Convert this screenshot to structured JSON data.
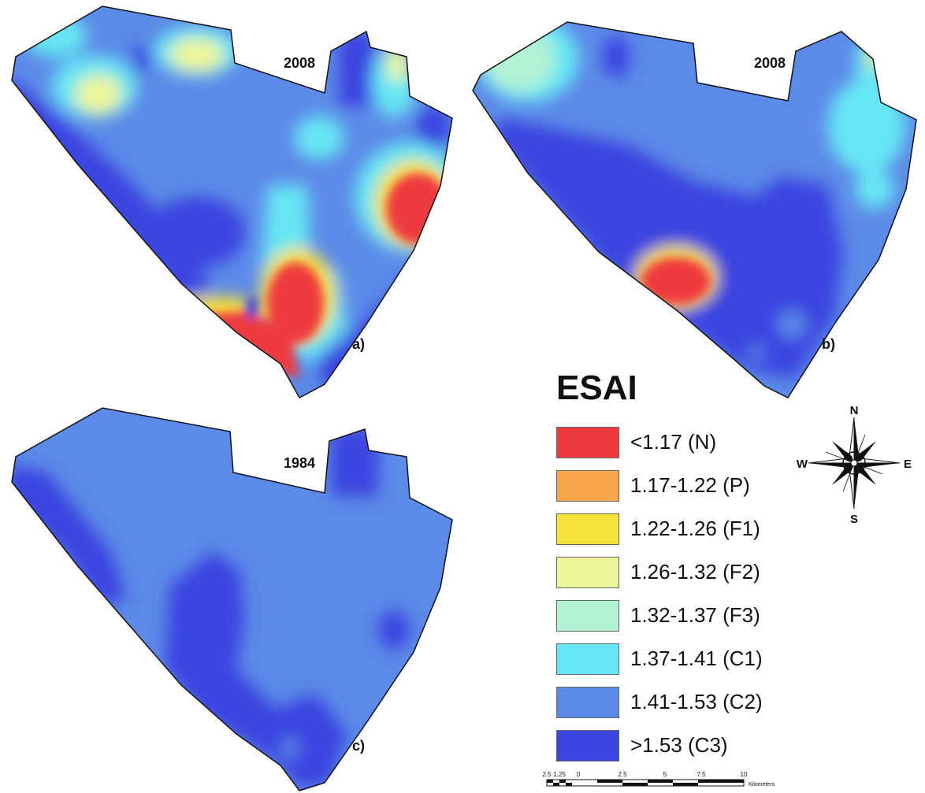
{
  "panels": [
    {
      "year": "2008",
      "letter": "a)"
    },
    {
      "year": "2008",
      "letter": "b)"
    },
    {
      "year": "1984",
      "letter": "c)"
    }
  ],
  "legend": {
    "title": "ESAI",
    "items": [
      {
        "label": "<1.17 (N)",
        "color": "#ef3b3f"
      },
      {
        "label": "1.17-1.22 (P)",
        "color": "#f7a54a"
      },
      {
        "label": "1.22-1.26 (F1)",
        "color": "#f7e23a"
      },
      {
        "label": "1.26-1.32 (F2)",
        "color": "#edf59a"
      },
      {
        "label": "1.32-1.37 (F3)",
        "color": "#b4f2d4"
      },
      {
        "label": "1.37-1.41 (C1)",
        "color": "#66e6f4"
      },
      {
        "label": "1.41-1.53 (C2)",
        "color": "#5c8ae8"
      },
      {
        "label": ">1.53 (C3)",
        "color": "#3b45e0"
      }
    ]
  },
  "compass": {
    "n": "N",
    "s": "S",
    "e": "E",
    "w": "W"
  },
  "scale_bar": {
    "ticks": [
      "2.5",
      "1.25",
      "0",
      "2.5",
      "5",
      "7.5",
      "10"
    ],
    "unit": "Kilometers"
  }
}
